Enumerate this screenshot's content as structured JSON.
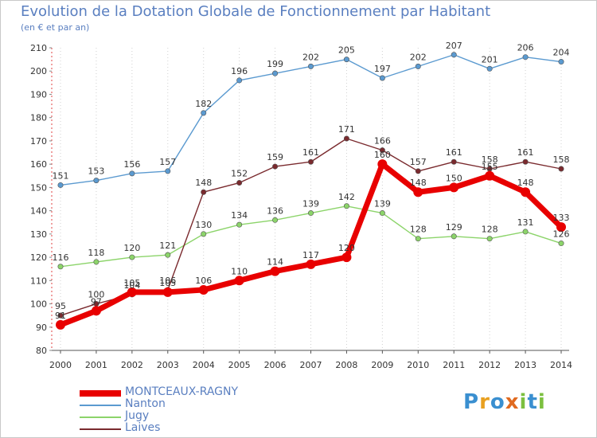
{
  "title": "Evolution de la Dotation Globale de Fonctionnement par Habitant",
  "subtitle": "(en € et par an)",
  "logo": {
    "letters": [
      {
        "ch": "P",
        "color": "#3a8fd0"
      },
      {
        "ch": "r",
        "color": "#e8a020"
      },
      {
        "ch": "o",
        "color": "#3a8fd0"
      },
      {
        "ch": "x",
        "color": "#e06a20"
      },
      {
        "ch": "i",
        "color": "#7cc040"
      },
      {
        "ch": "t",
        "color": "#3a8fd0"
      },
      {
        "ch": "i",
        "color": "#7cc040"
      }
    ]
  },
  "chart_data": {
    "type": "line",
    "x": [
      "2000",
      "2001",
      "2002",
      "2003",
      "2004",
      "2005",
      "2006",
      "2007",
      "2008",
      "2009",
      "2010",
      "2011",
      "2012",
      "2013",
      "2014"
    ],
    "ylim": [
      80,
      210
    ],
    "yticks": [
      80,
      90,
      100,
      110,
      120,
      130,
      140,
      150,
      160,
      170,
      180,
      190,
      200,
      210
    ],
    "grid": "vertical-dotted",
    "legend_position": "bottom-left",
    "series": [
      {
        "name": "MONTCEAUX-RAGNY",
        "color": "#e80000",
        "width": 7,
        "values": [
          91,
          97,
          105,
          105,
          106,
          110,
          114,
          117,
          120,
          160,
          148,
          150,
          155,
          148,
          133
        ],
        "labels": [
          "91",
          "97",
          "105",
          "105",
          "106",
          "110",
          "114",
          "117",
          "120",
          "160",
          "148",
          "150",
          "155",
          "148",
          "133"
        ]
      },
      {
        "name": "Nanton",
        "color": "#5b9ad0",
        "width": 1.4,
        "values": [
          151,
          153,
          156,
          157,
          182,
          196,
          199,
          202,
          205,
          197,
          202,
          207,
          201,
          206,
          204
        ],
        "labels": [
          "151",
          "153",
          "156",
          "157",
          "182",
          "196",
          "199",
          "202",
          "205",
          "197",
          "202",
          "207",
          "201",
          "206",
          "204"
        ]
      },
      {
        "name": "Jugy",
        "color": "#8cd46a",
        "width": 1.4,
        "values": [
          116,
          118,
          120,
          121,
          130,
          134,
          136,
          139,
          142,
          139,
          128,
          129,
          128,
          131,
          126
        ],
        "labels": [
          "116",
          "118",
          "120",
          "121",
          "130",
          "134",
          "136",
          "139",
          "142",
          "139",
          "128",
          "129",
          "128",
          "131",
          "126"
        ]
      },
      {
        "name": "Laives",
        "color": "#7a2a2e",
        "width": 1.4,
        "values": [
          95,
          100,
          104,
          106,
          148,
          152,
          159,
          161,
          171,
          166,
          157,
          161,
          158,
          161,
          158
        ],
        "labels": [
          "95",
          "100",
          "104",
          "106",
          "148",
          "152",
          "159",
          "161",
          "171",
          "166",
          "157",
          "161",
          "158",
          "161",
          "158"
        ]
      }
    ]
  }
}
